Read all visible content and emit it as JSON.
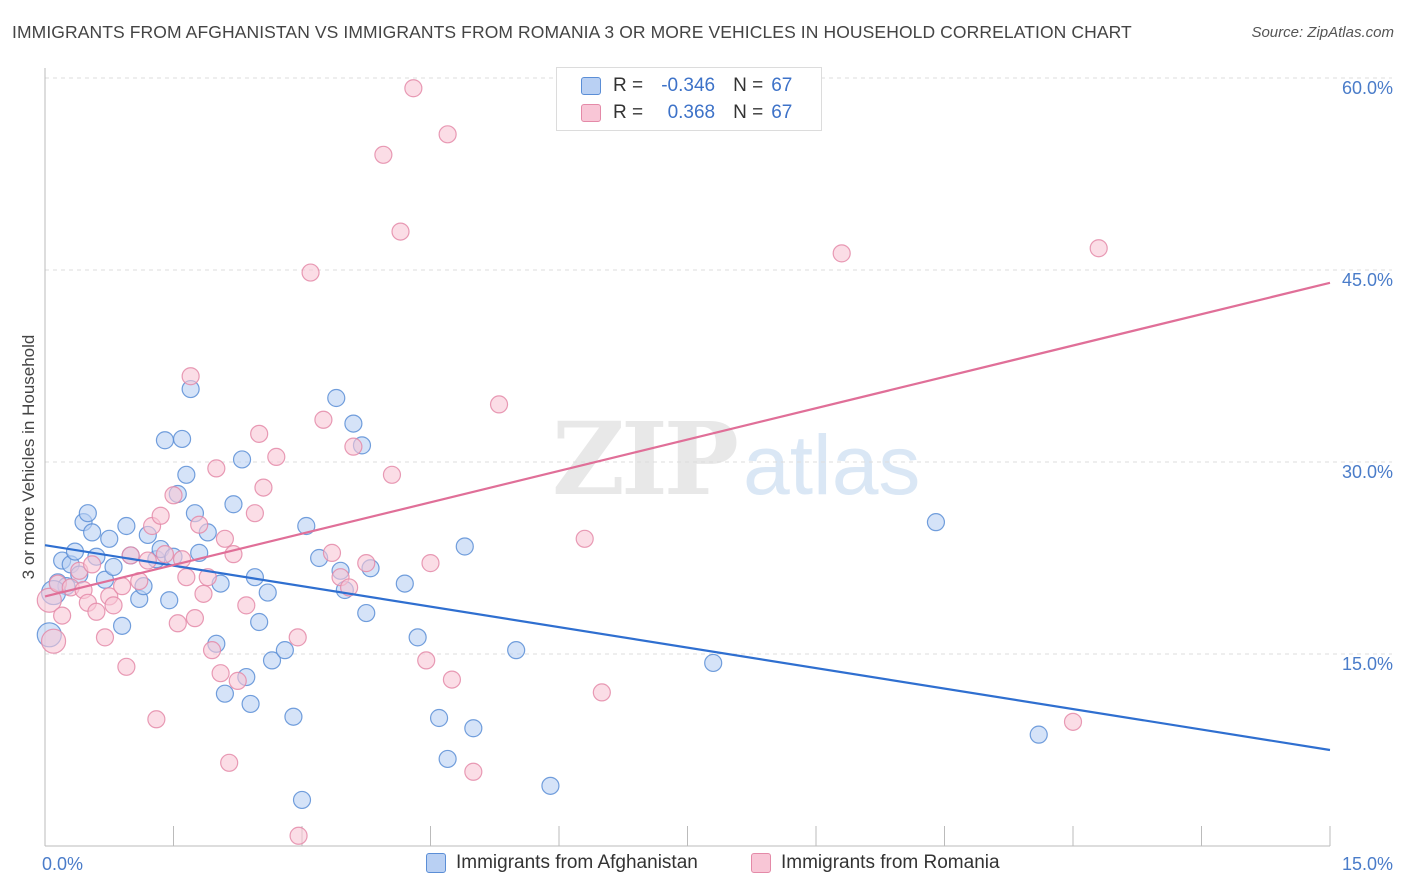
{
  "header": {
    "title": "IMMIGRANTS FROM AFGHANISTAN VS IMMIGRANTS FROM ROMANIA 3 OR MORE VEHICLES IN HOUSEHOLD CORRELATION CHART",
    "source": "Source: ZipAtlas.com"
  },
  "watermark": {
    "zip": "ZIP",
    "atlas": "atlas"
  },
  "legend": {
    "rows": [
      {
        "r_label": "R =",
        "r_value": "-0.346",
        "n_label": "N =",
        "n_value": "67"
      },
      {
        "r_label": "R =",
        "r_value": "0.368",
        "n_label": "N =",
        "n_value": "67"
      }
    ]
  },
  "colors": {
    "afghanistan_fill": "#b9d0f3",
    "afghanistan_stroke": "#5b8ed6",
    "afghanistan_line": "#2f6fd0",
    "romania_fill": "#f8c6d6",
    "romania_stroke": "#e48aa8",
    "romania_line": "#e06f98",
    "tick_text": "#4a7cc9",
    "grid": "#dddddd"
  },
  "chart_data": {
    "type": "scatter",
    "title": "IMMIGRANTS FROM AFGHANISTAN VS IMMIGRANTS FROM ROMANIA 3 OR MORE VEHICLES IN HOUSEHOLD CORRELATION CHART",
    "xlabel": "",
    "ylabel": "3 or more Vehicles in Household",
    "xlim": [
      0,
      15
    ],
    "ylim": [
      0,
      60
    ],
    "x_ticks": [
      {
        "value": 0,
        "label": "0.0%"
      },
      {
        "value": 15,
        "label": "15.0%"
      }
    ],
    "x_minor_ticks": [
      1.5,
      3.0,
      4.5,
      6.0,
      7.5,
      9.0,
      10.5,
      12.0,
      13.5
    ],
    "y_ticks": [
      {
        "value": 15,
        "label": "15.0%"
      },
      {
        "value": 30,
        "label": "30.0%"
      },
      {
        "value": 45,
        "label": "45.0%"
      },
      {
        "value": 60,
        "label": "60.0%"
      }
    ],
    "grid": true,
    "legend_position": "top-center",
    "series": [
      {
        "name": "Immigrants from Afghanistan",
        "r": -0.346,
        "n": 67,
        "trend": [
          [
            0,
            23.5
          ],
          [
            15,
            7.5
          ]
        ],
        "points": [
          [
            0.05,
            16.5
          ],
          [
            0.15,
            20.6
          ],
          [
            0.2,
            22.3
          ],
          [
            0.25,
            20.3
          ],
          [
            0.3,
            22.0
          ],
          [
            0.35,
            23.0
          ],
          [
            0.4,
            21.2
          ],
          [
            0.45,
            25.3
          ],
          [
            0.5,
            26.0
          ],
          [
            0.55,
            24.5
          ],
          [
            0.6,
            22.6
          ],
          [
            0.7,
            20.8
          ],
          [
            0.75,
            24.0
          ],
          [
            0.8,
            21.8
          ],
          [
            0.9,
            17.2
          ],
          [
            0.95,
            25.0
          ],
          [
            1.0,
            22.7
          ],
          [
            1.1,
            19.3
          ],
          [
            1.15,
            20.3
          ],
          [
            1.2,
            24.3
          ],
          [
            1.3,
            22.4
          ],
          [
            1.35,
            23.2
          ],
          [
            1.4,
            31.7
          ],
          [
            1.45,
            19.2
          ],
          [
            1.5,
            22.6
          ],
          [
            1.55,
            27.5
          ],
          [
            1.6,
            31.8
          ],
          [
            1.65,
            29.0
          ],
          [
            1.7,
            35.7
          ],
          [
            1.75,
            26.0
          ],
          [
            1.8,
            22.9
          ],
          [
            1.9,
            24.5
          ],
          [
            2.0,
            15.8
          ],
          [
            2.05,
            20.5
          ],
          [
            2.1,
            11.9
          ],
          [
            2.2,
            26.7
          ],
          [
            2.3,
            30.2
          ],
          [
            2.35,
            13.2
          ],
          [
            2.4,
            11.1
          ],
          [
            2.45,
            21.0
          ],
          [
            2.5,
            17.5
          ],
          [
            2.6,
            19.8
          ],
          [
            2.65,
            14.5
          ],
          [
            2.8,
            15.3
          ],
          [
            2.9,
            10.1
          ],
          [
            3.0,
            3.6
          ],
          [
            3.05,
            25.0
          ],
          [
            3.2,
            22.5
          ],
          [
            3.4,
            35.0
          ],
          [
            3.45,
            21.5
          ],
          [
            3.5,
            20.0
          ],
          [
            3.6,
            33.0
          ],
          [
            3.7,
            31.3
          ],
          [
            3.75,
            18.2
          ],
          [
            3.8,
            21.7
          ],
          [
            4.2,
            20.5
          ],
          [
            4.35,
            16.3
          ],
          [
            4.6,
            10.0
          ],
          [
            4.7,
            6.8
          ],
          [
            4.9,
            23.4
          ],
          [
            5.0,
            9.2
          ],
          [
            5.5,
            15.3
          ],
          [
            5.9,
            4.7
          ],
          [
            7.8,
            14.3
          ],
          [
            10.4,
            25.3
          ],
          [
            11.6,
            8.7
          ],
          [
            0.1,
            19.8
          ]
        ]
      },
      {
        "name": "Immigrants from Romania",
        "r": 0.368,
        "n": 67,
        "trend": [
          [
            0,
            19.5
          ],
          [
            15,
            44.0
          ]
        ],
        "points": [
          [
            0.05,
            19.2
          ],
          [
            0.1,
            16.0
          ],
          [
            0.15,
            20.5
          ],
          [
            0.2,
            18.0
          ],
          [
            0.3,
            20.2
          ],
          [
            0.4,
            21.5
          ],
          [
            0.45,
            20.0
          ],
          [
            0.5,
            19.0
          ],
          [
            0.55,
            22.0
          ],
          [
            0.6,
            18.3
          ],
          [
            0.7,
            16.3
          ],
          [
            0.75,
            19.5
          ],
          [
            0.8,
            18.8
          ],
          [
            0.9,
            20.3
          ],
          [
            0.95,
            14.0
          ],
          [
            1.0,
            22.7
          ],
          [
            1.1,
            20.7
          ],
          [
            1.2,
            22.3
          ],
          [
            1.25,
            25.0
          ],
          [
            1.3,
            9.9
          ],
          [
            1.35,
            25.8
          ],
          [
            1.4,
            22.8
          ],
          [
            1.5,
            27.4
          ],
          [
            1.55,
            17.4
          ],
          [
            1.6,
            22.4
          ],
          [
            1.65,
            21.0
          ],
          [
            1.7,
            36.7
          ],
          [
            1.75,
            17.8
          ],
          [
            1.8,
            25.1
          ],
          [
            1.85,
            19.7
          ],
          [
            1.9,
            21.0
          ],
          [
            1.95,
            15.3
          ],
          [
            2.0,
            29.5
          ],
          [
            2.05,
            13.5
          ],
          [
            2.1,
            24.0
          ],
          [
            2.15,
            6.5
          ],
          [
            2.2,
            22.8
          ],
          [
            2.25,
            12.9
          ],
          [
            2.35,
            18.8
          ],
          [
            2.45,
            26.0
          ],
          [
            2.5,
            32.2
          ],
          [
            2.55,
            28.0
          ],
          [
            2.7,
            30.4
          ],
          [
            2.95,
            16.3
          ],
          [
            2.96,
            0.8
          ],
          [
            3.1,
            44.8
          ],
          [
            3.25,
            33.3
          ],
          [
            3.35,
            22.9
          ],
          [
            3.45,
            21.0
          ],
          [
            3.55,
            20.2
          ],
          [
            3.6,
            31.2
          ],
          [
            3.75,
            22.1
          ],
          [
            3.95,
            54.0
          ],
          [
            4.05,
            29.0
          ],
          [
            4.15,
            48.0
          ],
          [
            4.3,
            59.2
          ],
          [
            4.45,
            14.5
          ],
          [
            4.5,
            22.1
          ],
          [
            4.7,
            55.6
          ],
          [
            4.75,
            13.0
          ],
          [
            5.0,
            5.8
          ],
          [
            5.3,
            34.5
          ],
          [
            6.3,
            24.0
          ],
          [
            6.5,
            12.0
          ],
          [
            9.3,
            46.3
          ],
          [
            12.0,
            9.7
          ],
          [
            12.3,
            46.7
          ]
        ]
      }
    ]
  },
  "bottom_legend": {
    "items": [
      {
        "label": "Immigrants from Afghanistan"
      },
      {
        "label": "Immigrants from Romania"
      }
    ]
  }
}
